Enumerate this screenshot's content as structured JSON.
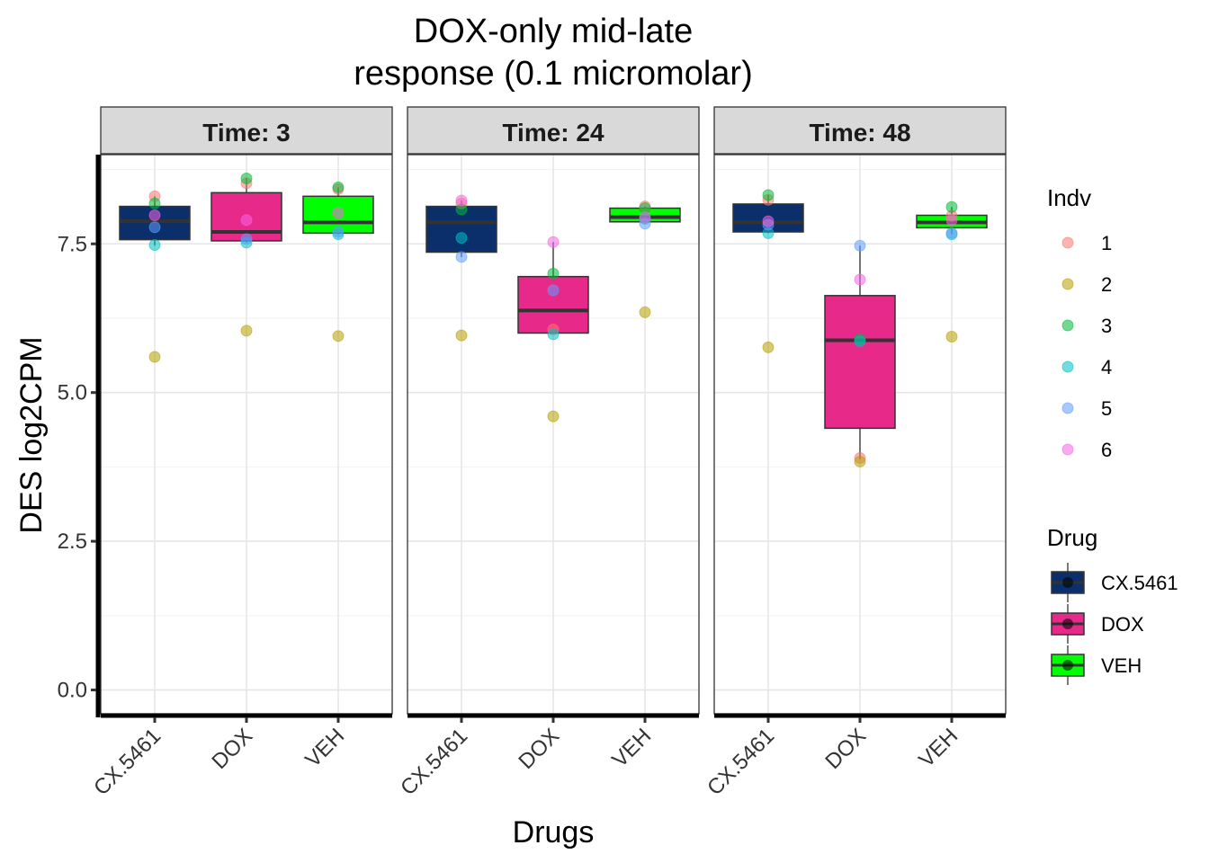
{
  "chart_data": {
    "type": "box",
    "title": [
      "DOX-only mid-late",
      "response (0.1 micromolar)"
    ],
    "xlabel": "Drugs",
    "ylabel": "DES  log2CPM",
    "ylim": [
      -0.4,
      9.0
    ],
    "yticks": [
      0.0,
      2.5,
      5.0,
      7.5
    ],
    "ytick_labels": [
      "0.0",
      "2.5",
      "5.0",
      "7.5"
    ],
    "categories": [
      "CX.5461",
      "DOX",
      "VEH"
    ],
    "grid": true,
    "legend_position": "right",
    "indv_legend": {
      "title": "Indv",
      "items": [
        {
          "label": "1",
          "color": "#F8766D"
        },
        {
          "label": "2",
          "color": "#B79F00"
        },
        {
          "label": "3",
          "color": "#00BA38"
        },
        {
          "label": "4",
          "color": "#00BFC4"
        },
        {
          "label": "5",
          "color": "#619CFF"
        },
        {
          "label": "6",
          "color": "#F564E3"
        }
      ]
    },
    "drug_legend": {
      "title": "Drug",
      "items": [
        {
          "label": "CX.5461",
          "color": "#0A2F6B"
        },
        {
          "label": "DOX",
          "color": "#E7298A"
        },
        {
          "label": "VEH",
          "color": "#00FF00"
        }
      ]
    },
    "panels": [
      {
        "label": "Time: 3",
        "boxes": [
          {
            "drug": "CX.5461",
            "q1": 7.57,
            "median": 7.88,
            "q3": 8.13,
            "whisker_low": 7.47,
            "whisker_high": 8.3,
            "points": [
              8.3,
              5.6,
              8.18,
              7.48,
              7.78,
              7.98
            ]
          },
          {
            "drug": "DOX",
            "q1": 7.55,
            "median": 7.7,
            "q3": 8.36,
            "whisker_low": 7.52,
            "whisker_high": 8.6,
            "points": [
              8.52,
              6.04,
              8.6,
              7.52,
              7.58,
              7.9
            ]
          },
          {
            "drug": "VEH",
            "q1": 7.68,
            "median": 7.86,
            "q3": 8.3,
            "whisker_low": 7.66,
            "whisker_high": 8.45,
            "points": [
              8.42,
              5.95,
              8.45,
              7.66,
              7.7,
              8.02
            ]
          }
        ]
      },
      {
        "label": "Time: 24",
        "boxes": [
          {
            "drug": "CX.5461",
            "q1": 7.36,
            "median": 7.86,
            "q3": 8.13,
            "whisker_low": 7.28,
            "whisker_high": 8.23,
            "points": [
              8.18,
              5.96,
              8.08,
              7.6,
              7.28,
              8.23
            ]
          },
          {
            "drug": "DOX",
            "q1": 6.0,
            "median": 6.38,
            "q3": 6.95,
            "whisker_low": 6.0,
            "whisker_high": 7.53,
            "points": [
              6.06,
              4.6,
              7.0,
              5.98,
              6.72,
              7.53
            ]
          },
          {
            "drug": "VEH",
            "q1": 7.87,
            "median": 7.95,
            "q3": 8.1,
            "whisker_low": 7.84,
            "whisker_high": 8.13,
            "points": [
              8.13,
              6.35,
              8.1,
              7.92,
              7.84,
              7.95
            ]
          }
        ]
      },
      {
        "label": "Time: 48",
        "boxes": [
          {
            "drug": "CX.5461",
            "q1": 7.7,
            "median": 7.86,
            "q3": 8.17,
            "whisker_low": 7.68,
            "whisker_high": 8.32,
            "points": [
              8.24,
              5.76,
              8.32,
              7.68,
              7.82,
              7.88
            ]
          },
          {
            "drug": "DOX",
            "q1": 4.4,
            "median": 5.88,
            "q3": 6.63,
            "whisker_low": 3.88,
            "whisker_high": 7.47,
            "points": [
              3.9,
              3.84,
              5.9,
              5.86,
              7.47,
              6.9
            ]
          },
          {
            "drug": "VEH",
            "q1": 7.77,
            "median": 7.86,
            "q3": 7.98,
            "whisker_low": 7.66,
            "whisker_high": 8.12,
            "points": [
              7.97,
              5.94,
              8.12,
              7.66,
              7.68,
              7.9
            ]
          }
        ]
      }
    ]
  }
}
